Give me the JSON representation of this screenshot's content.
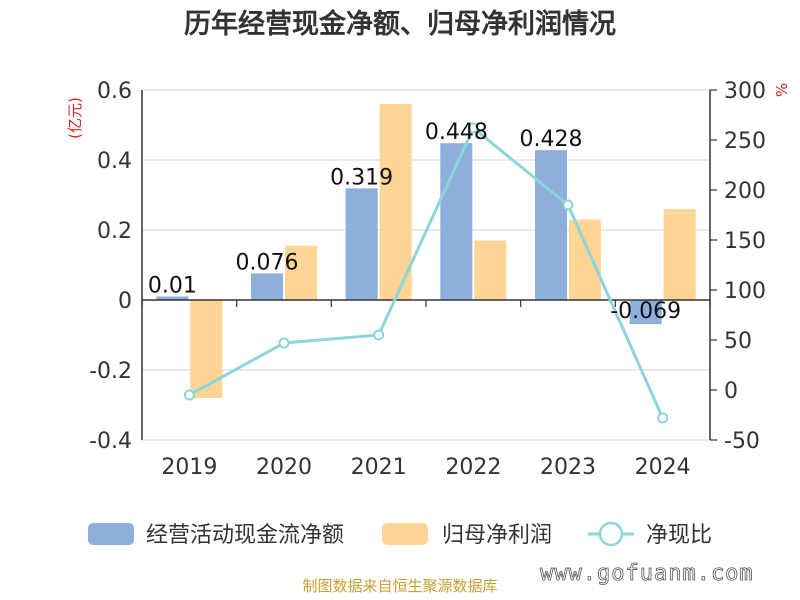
{
  "colors": {
    "cash_flow": "#8eaedc",
    "net_profit": "#fed594",
    "ratio": "#8dd5d8",
    "unit_text": "#e02020",
    "source_text": "#c8a030"
  },
  "chart_data": {
    "type": "bar",
    "title": "历年经营现金净额、归母净利润情况",
    "categories": [
      "2019",
      "2020",
      "2021",
      "2022",
      "2023",
      "2024"
    ],
    "y_left": {
      "unit": "(亿元)",
      "ylim": [
        -0.4,
        0.6
      ],
      "ticks": [
        -0.4,
        -0.2,
        0,
        0.2,
        0.4,
        0.6
      ],
      "tick_labels": [
        "-0.4",
        "-0.2",
        "0",
        "0.2",
        "0.4",
        "0.6"
      ]
    },
    "y_right": {
      "unit": "%",
      "ylim": [
        -50,
        300
      ],
      "ticks": [
        -50,
        0,
        50,
        100,
        150,
        200,
        250,
        300
      ],
      "tick_labels": [
        "-50",
        "0",
        "50",
        "100",
        "150",
        "200",
        "250",
        "300"
      ]
    },
    "grid": true,
    "legend_position": "bottom",
    "series": [
      {
        "name": "经营活动现金流净额",
        "type": "bar",
        "axis": "left",
        "values": [
          0.01,
          0.076,
          0.319,
          0.448,
          0.428,
          -0.069
        ],
        "labels": [
          "0.01",
          "0.076",
          "0.319",
          "0.448",
          "0.428",
          "-0.069"
        ]
      },
      {
        "name": "归母净利润",
        "type": "bar",
        "axis": "left",
        "values": [
          -0.28,
          0.155,
          0.56,
          0.17,
          0.23,
          0.26
        ]
      },
      {
        "name": "净现比",
        "type": "line",
        "axis": "right",
        "values": [
          -5,
          47,
          55,
          262,
          185,
          -28
        ]
      }
    ]
  },
  "source_text": "制图数据来自恒生聚源数据库",
  "watermark_text": "www.gofuanm.com"
}
